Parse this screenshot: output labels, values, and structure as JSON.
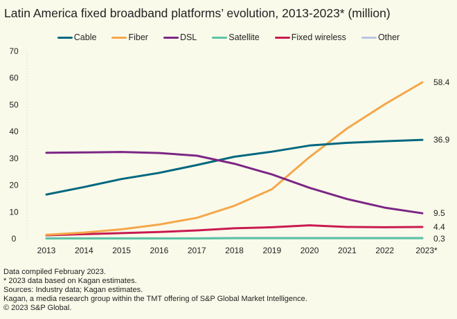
{
  "chart_data": {
    "type": "line",
    "title": "Latin America fixed broadband platforms’ evolution, 2013-2023* (million)",
    "categories": [
      "2013",
      "2014",
      "2015",
      "2016",
      "2017",
      "2018",
      "2019",
      "2020",
      "2021",
      "2022",
      "2023*"
    ],
    "ylim": [
      0,
      70
    ],
    "yticks": [
      "0",
      "10",
      "20",
      "30",
      "40",
      "50",
      "60",
      "70"
    ],
    "grid": false,
    "legend": "top",
    "series": [
      {
        "name": "Cable",
        "color": "#00677f",
        "values": [
          16.5,
          19.3,
          22.3,
          24.6,
          27.5,
          30.6,
          32.5,
          34.8,
          35.8,
          36.4,
          36.9
        ],
        "end_label": "36.9"
      },
      {
        "name": "Fiber",
        "color": "#f4a74a",
        "values": [
          1.5,
          2.3,
          3.5,
          5.3,
          7.8,
          12.3,
          18.5,
          30.5,
          41.2,
          50.2,
          58.4
        ],
        "end_label": "58.4"
      },
      {
        "name": "DSL",
        "color": "#7b2685",
        "values": [
          32.1,
          32.2,
          32.4,
          32.0,
          31.0,
          28.0,
          24.0,
          19.0,
          14.8,
          11.6,
          9.5
        ],
        "end_label": "9.5"
      },
      {
        "name": "Satellite",
        "color": "#5cc3a3",
        "values": [
          0.1,
          0.1,
          0.1,
          0.1,
          0.1,
          0.2,
          0.2,
          0.2,
          0.2,
          0.2,
          0.2
        ],
        "end_label": ""
      },
      {
        "name": "Fixed wireless",
        "color": "#c81a50",
        "values": [
          1.3,
          1.7,
          2.1,
          2.5,
          3.1,
          3.9,
          4.3,
          5.0,
          4.4,
          4.3,
          4.4
        ],
        "end_label": "4.4"
      },
      {
        "name": "Other",
        "color": "#b9c5e2",
        "values": [
          0.2,
          0.2,
          0.2,
          0.2,
          0.2,
          0.3,
          0.3,
          0.3,
          0.3,
          0.3,
          0.3
        ],
        "end_label": "0.3"
      }
    ]
  },
  "notes": [
    "Data compiled February 2023.",
    "* 2023 data based on Kagan estimates.",
    "Sources: Industry data; Kagan estimates.",
    "Kagan, a media research group within the TMT offering of S&P Global Market Intelligence.",
    "© 2023 S&P Global."
  ]
}
